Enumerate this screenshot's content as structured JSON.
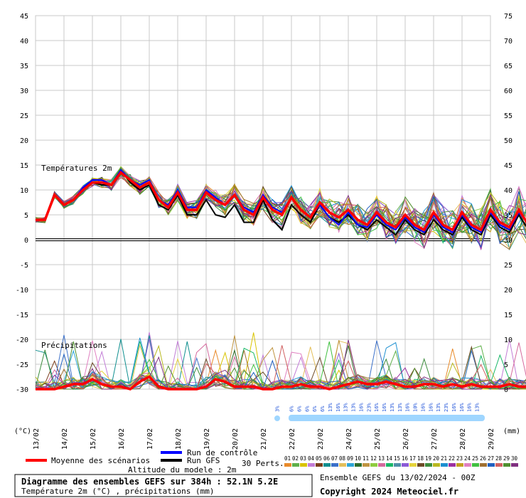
{
  "chart_data": {
    "type": "line",
    "title": "Diagramme des ensembles GEFS sur 384h : 52.1N 5.2E",
    "subtitle": "Température 2m (°C) , précipitations (mm)",
    "left_unit": "(°C)",
    "right_unit": "(mm)",
    "y_left_ticks": [
      45,
      40,
      35,
      30,
      25,
      20,
      15,
      10,
      5,
      0,
      -5,
      -10,
      -15,
      -20,
      -25,
      -30
    ],
    "y_right_ticks": [
      75,
      70,
      65,
      60,
      55,
      50,
      45,
      40,
      35,
      30,
      25,
      20,
      15,
      10,
      5,
      0
    ],
    "ylim": [
      -30,
      45
    ],
    "x_dates": [
      "13/02",
      "14/02",
      "15/02",
      "16/02",
      "17/02",
      "18/02",
      "19/02",
      "20/02",
      "21/02",
      "22/02",
      "23/02",
      "24/02",
      "25/02",
      "26/02",
      "27/02",
      "28/02",
      "29/02"
    ],
    "temperature_label": "Températures 2m",
    "precipitation_label": "Précipitations",
    "mean_temperature": [
      4,
      4,
      9,
      7,
      8,
      10,
      11.5,
      11.5,
      11,
      13.5,
      12,
      10.5,
      11.5,
      8,
      6.5,
      9.5,
      6,
      6,
      9.5,
      8,
      7,
      9,
      6,
      5,
      8.5,
      6,
      5,
      8.5,
      6,
      4.5,
      7.5,
      5.5,
      4.5,
      6,
      4,
      3,
      5.5,
      3.5,
      2.5,
      5,
      3,
      2,
      5.5,
      3,
      2,
      5.5,
      3,
      2,
      6,
      3.5,
      2.5,
      6,
      3,
      2,
      6
    ],
    "gfs_temperature": [
      4,
      4,
      9,
      7,
      8,
      10.5,
      11.5,
      11,
      11,
      14,
      11.5,
      10,
      11,
      7,
      6,
      9,
      5,
      5,
      8,
      5,
      4.5,
      7,
      3.5,
      3.5,
      8,
      4,
      2,
      7,
      5,
      3.5,
      7,
      4.5,
      3.5,
      5,
      3,
      2,
      4,
      2.5,
      1,
      4,
      2,
      1,
      4,
      2,
      1,
      4.5,
      2,
      1,
      5,
      2.5,
      1.5,
      5,
      2,
      1,
      4.5
    ],
    "control_temperature": [
      4,
      4,
      9,
      7,
      8,
      10.5,
      12,
      12,
      11,
      14,
      12,
      11,
      12,
      8,
      7,
      10,
      6.5,
      6.5,
      10,
      8.5,
      7,
      9,
      6.5,
      5.5,
      9,
      6.5,
      5.5,
      8.5,
      6,
      4.5,
      7,
      4.5,
      3,
      5.5,
      3,
      2.5,
      5,
      3,
      2,
      4.5,
      2.5,
      1.5,
      5,
      2.5,
      1.5,
      5,
      2.5,
      1.5,
      5.5,
      3,
      2,
      5.5,
      3,
      1.5,
      5
    ],
    "mean_precipitation": [
      0,
      0,
      0,
      0.5,
      1,
      1,
      2,
      1,
      0.5,
      0.5,
      0,
      1.5,
      2.5,
      0.5,
      0,
      0,
      0,
      0,
      0.5,
      2,
      1.5,
      0.5,
      0.5,
      0.5,
      0,
      0,
      0.5,
      0.5,
      1,
      0.5,
      0.5,
      0,
      0.5,
      1,
      1.5,
      1,
      1,
      1.5,
      1,
      0.5,
      0.5,
      1,
      1,
      0.5,
      1,
      0.5,
      1,
      0.5,
      0.5,
      0.5,
      1,
      0.5,
      0.5,
      0.5,
      0
    ],
    "snow_probability_labels": [
      "3%",
      "6%",
      "6%",
      "6%",
      "6%",
      "6%",
      "13%",
      "16%",
      "13%",
      "13%",
      "16%",
      "23%",
      "16%",
      "16%",
      "13%",
      "13%",
      "16%",
      "10%",
      "16%",
      "16%",
      "13%",
      "23%",
      "16%",
      "16%",
      "16%",
      "13%"
    ]
  },
  "legend": {
    "mean": "Moyenne des scénarios",
    "control": "Run de contrôle",
    "gfs": "Run GFS",
    "perts": "30 Perts.",
    "altitude": "Altitude du modele : 2m",
    "member_numbers": [
      "01",
      "02",
      "03",
      "04",
      "05",
      "06",
      "07",
      "08",
      "09",
      "10",
      "11",
      "12",
      "13",
      "14",
      "15",
      "16",
      "17",
      "18",
      "19",
      "20",
      "21",
      "22",
      "23",
      "24",
      "25",
      "26",
      "27",
      "28",
      "29",
      "30"
    ]
  },
  "colors": {
    "mean": "#ff0000",
    "control": "#0000ff",
    "gfs": "#000000",
    "grid": "#c8c8c8",
    "snow": "#9fd6ff",
    "members": [
      "#e88a2a",
      "#5fb04a",
      "#d9c400",
      "#c27cd6",
      "#7a3d1c",
      "#0f8f8f",
      "#3b70c9",
      "#e4bf5a",
      "#2da6d8",
      "#2c6e2c",
      "#bf9440",
      "#8fcc40",
      "#d46a9e",
      "#19b868",
      "#4f8fa8",
      "#8a5ad6",
      "#e6d43a",
      "#6d4a27",
      "#3c8c3c",
      "#b8b820",
      "#1c8fd0",
      "#9c2fa0",
      "#c4a020",
      "#e080c0",
      "#40c040",
      "#a07030",
      "#2060c0",
      "#d06060",
      "#509030",
      "#803080"
    ]
  },
  "footer": {
    "ensemble": "Ensemble GEFS du 13/02/2024 - 00Z",
    "copyright": "Copyright 2024 Meteociel.fr"
  }
}
